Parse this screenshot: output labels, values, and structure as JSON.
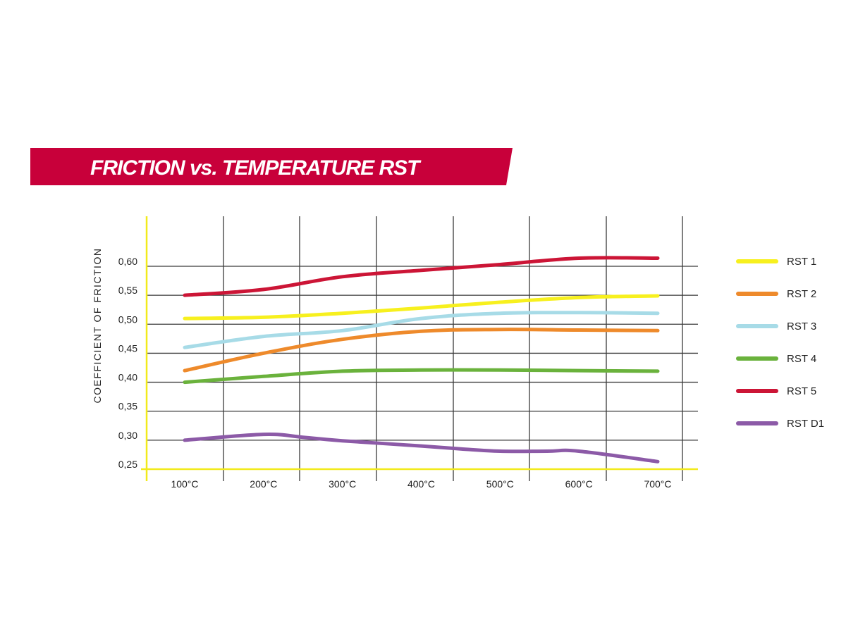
{
  "colors": {
    "banner": "#c8003a",
    "axis": "#f2ea1c",
    "grid": "#3a3a3a"
  },
  "chart_data": {
    "type": "line",
    "title": "FRICTION vs. TEMPERATURE RST",
    "xlabel": "",
    "ylabel": "COEFFICIENT OF FRICTION",
    "categories": [
      "100°C",
      "200°C",
      "300°C",
      "400°C",
      "500°C",
      "600°C",
      "700°C"
    ],
    "x": [
      100,
      200,
      300,
      400,
      500,
      600,
      700
    ],
    "ylim": [
      0.25,
      0.6
    ],
    "yticks": [
      "0,25",
      "0,30",
      "0,35",
      "0,40",
      "0,45",
      "0,50",
      "0,55",
      "0,60"
    ],
    "grid": true,
    "legend_position": "right",
    "series": [
      {
        "name": "RST 1",
        "color": "#f7f01e",
        "points": [
          [
            100,
            0.51
          ],
          [
            200,
            0.512
          ],
          [
            300,
            0.519
          ],
          [
            400,
            0.528
          ],
          [
            500,
            0.538
          ],
          [
            600,
            0.546
          ],
          [
            700,
            0.549
          ]
        ]
      },
      {
        "name": "RST 2",
        "color": "#ee8a2b",
        "points": [
          [
            100,
            0.42
          ],
          [
            200,
            0.45
          ],
          [
            300,
            0.474
          ],
          [
            400,
            0.488
          ],
          [
            500,
            0.491
          ],
          [
            600,
            0.49
          ],
          [
            700,
            0.489
          ]
        ]
      },
      {
        "name": "RST 3",
        "color": "#a7dbe7",
        "points": [
          [
            100,
            0.46
          ],
          [
            200,
            0.479
          ],
          [
            300,
            0.489
          ],
          [
            400,
            0.51
          ],
          [
            500,
            0.519
          ],
          [
            600,
            0.52
          ],
          [
            700,
            0.519
          ]
        ]
      },
      {
        "name": "RST 4",
        "color": "#6ab23c",
        "points": [
          [
            100,
            0.4
          ],
          [
            200,
            0.41
          ],
          [
            300,
            0.419
          ],
          [
            400,
            0.421
          ],
          [
            500,
            0.421
          ],
          [
            600,
            0.42
          ],
          [
            700,
            0.419
          ]
        ]
      },
      {
        "name": "RST 5",
        "color": "#cc1536",
        "points": [
          [
            100,
            0.55
          ],
          [
            200,
            0.56
          ],
          [
            300,
            0.582
          ],
          [
            400,
            0.593
          ],
          [
            500,
            0.603
          ],
          [
            600,
            0.614
          ],
          [
            700,
            0.614
          ]
        ]
      },
      {
        "name": "RST D1",
        "color": "#8c5aa7",
        "points": [
          [
            100,
            0.3
          ],
          [
            200,
            0.31
          ],
          [
            250,
            0.305
          ],
          [
            300,
            0.299
          ],
          [
            400,
            0.29
          ],
          [
            450,
            0.285
          ],
          [
            500,
            0.281
          ],
          [
            560,
            0.281
          ],
          [
            600,
            0.281
          ],
          [
            700,
            0.263
          ]
        ]
      }
    ]
  }
}
